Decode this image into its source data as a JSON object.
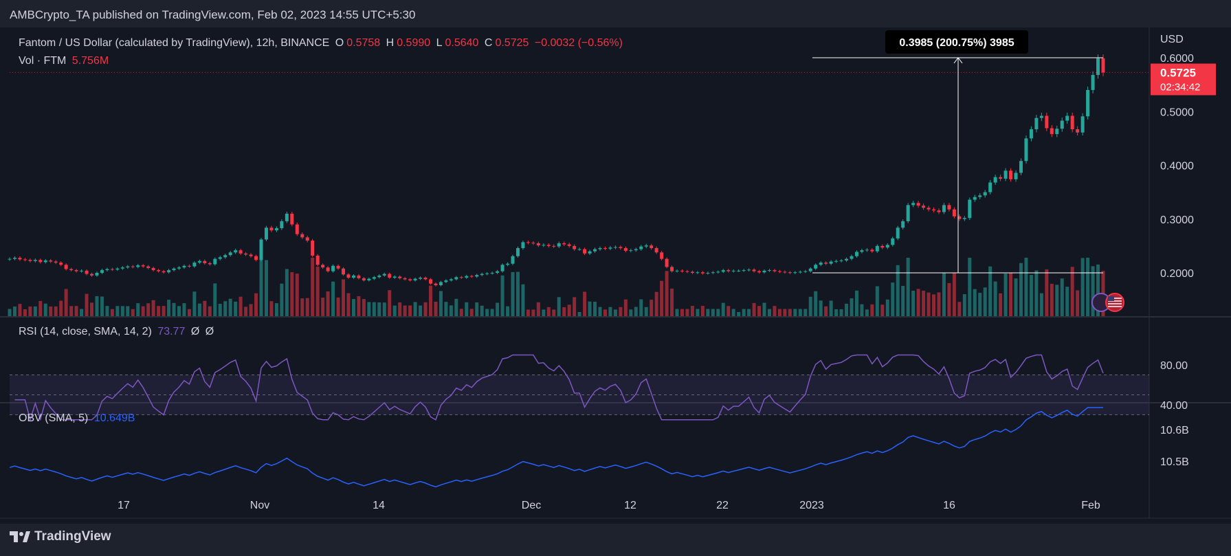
{
  "header": {
    "publisher_line": "AMBCrypto_TA published on TradingView.com, Feb 02, 2023 14:55 UTC+5:30"
  },
  "legend": {
    "symbol": "Fantom / US Dollar (calculated by TradingView), 12h, BINANCE",
    "o_label": "O",
    "o_value": "0.5758",
    "h_label": "H",
    "h_value": "0.5990",
    "l_label": "L",
    "l_value": "0.5640",
    "c_label": "C",
    "c_value": "0.5725",
    "change": "−0.0032 (−0.56%)",
    "vol_label": "Vol · FTM",
    "vol_value": "5.756M"
  },
  "rsi": {
    "label": "RSI (14, close, SMA, 14, 2)",
    "value": "73.77",
    "na1": "Ø",
    "na2": "Ø"
  },
  "obv": {
    "label": "OBV (SMA, 5)",
    "value": "10.649B"
  },
  "footer": {
    "brand": "TradingView"
  },
  "colors": {
    "up": "#26a69a",
    "down": "#f23645",
    "rsi": "#7e57c2",
    "obv": "#2962ff",
    "bg": "#131722"
  },
  "chart_data": {
    "type": "candlestick",
    "title": "Fantom / US Dollar (calculated by TradingView), 12h, BINANCE",
    "currency": "USD",
    "price_axis": {
      "ticks": [
        0.6,
        0.5,
        0.4,
        0.3,
        0.2
      ],
      "tick_labels": [
        "0.6000",
        "0.5000",
        "0.4000",
        "0.3000",
        "0.2000"
      ],
      "ylim": [
        0.14,
        0.62
      ]
    },
    "last_price": {
      "value": "0.5725",
      "countdown": "02:34:42"
    },
    "time_axis": {
      "ticks": [
        "17",
        "Nov",
        "14",
        "Dec",
        "12",
        "22",
        "2023",
        "16",
        "Feb"
      ]
    },
    "candles_approx_close": [
      0.226,
      0.228,
      0.225,
      0.224,
      0.222,
      0.224,
      0.22,
      0.223,
      0.221,
      0.219,
      0.215,
      0.207,
      0.205,
      0.203,
      0.204,
      0.198,
      0.195,
      0.2,
      0.205,
      0.207,
      0.206,
      0.208,
      0.21,
      0.212,
      0.211,
      0.214,
      0.212,
      0.209,
      0.205,
      0.203,
      0.201,
      0.205,
      0.208,
      0.21,
      0.213,
      0.212,
      0.219,
      0.222,
      0.218,
      0.216,
      0.226,
      0.229,
      0.233,
      0.238,
      0.242,
      0.236,
      0.234,
      0.231,
      0.224,
      0.262,
      0.284,
      0.279,
      0.283,
      0.296,
      0.31,
      0.29,
      0.272,
      0.266,
      0.26,
      0.232,
      0.215,
      0.21,
      0.203,
      0.213,
      0.208,
      0.197,
      0.191,
      0.195,
      0.19,
      0.186,
      0.189,
      0.192,
      0.195,
      0.198,
      0.191,
      0.193,
      0.19,
      0.188,
      0.186,
      0.189,
      0.191,
      0.188,
      0.18,
      0.177,
      0.183,
      0.186,
      0.188,
      0.192,
      0.191,
      0.194,
      0.193,
      0.196,
      0.198,
      0.199,
      0.2,
      0.203,
      0.215,
      0.217,
      0.231,
      0.246,
      0.257,
      0.256,
      0.255,
      0.251,
      0.252,
      0.25,
      0.249,
      0.255,
      0.253,
      0.25,
      0.244,
      0.244,
      0.236,
      0.24,
      0.244,
      0.246,
      0.245,
      0.247,
      0.248,
      0.246,
      0.241,
      0.242,
      0.244,
      0.249,
      0.251,
      0.246,
      0.238,
      0.226,
      0.211,
      0.203,
      0.204,
      0.203,
      0.202,
      0.2,
      0.201,
      0.199,
      0.2,
      0.201,
      0.202,
      0.205,
      0.203,
      0.204,
      0.204,
      0.205,
      0.206,
      0.203,
      0.201,
      0.204,
      0.205,
      0.203,
      0.202,
      0.201,
      0.2,
      0.201,
      0.202,
      0.203,
      0.208,
      0.215,
      0.219,
      0.217,
      0.221,
      0.222,
      0.223,
      0.226,
      0.231,
      0.239,
      0.242,
      0.243,
      0.24,
      0.25,
      0.247,
      0.252,
      0.264,
      0.284,
      0.296,
      0.326,
      0.33,
      0.325,
      0.321,
      0.318,
      0.316,
      0.313,
      0.326,
      0.318,
      0.305,
      0.3,
      0.302,
      0.336,
      0.341,
      0.344,
      0.35,
      0.368,
      0.378,
      0.375,
      0.39,
      0.374,
      0.386,
      0.408,
      0.45,
      0.467,
      0.488,
      0.492,
      0.469,
      0.458,
      0.468,
      0.483,
      0.492,
      0.467,
      0.461,
      0.491,
      0.54,
      0.568,
      0.599,
      0.5725
    ],
    "volume_ft_m": [],
    "rsi": {
      "levels": [
        70,
        50,
        30
      ],
      "tick_labels": [
        "80.00",
        "40.00"
      ],
      "last": 73.77
    },
    "obv": {
      "tick_labels": [
        "10.6B",
        "10.5B"
      ],
      "last": "10.649B"
    },
    "measure": {
      "label": "0.3985 (200.75%) 3985",
      "from": 0.2,
      "to": 0.6
    }
  }
}
